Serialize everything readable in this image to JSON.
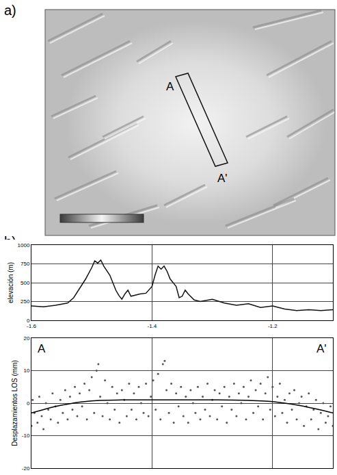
{
  "letters": [
    "a)",
    "b)"
  ],
  "map": {
    "labels": [
      "A",
      "A'"
    ]
  },
  "chart_data": [
    {
      "type": "line",
      "y_label": "elevación (m)",
      "color": "#111111",
      "grid": true,
      "xlim": [
        -1.6,
        -1.1
      ],
      "xticks": [
        -1.6,
        -1.4,
        -1.2
      ],
      "ylim": [
        0,
        1000
      ],
      "yticks": [
        0,
        250,
        500,
        750,
        1000
      ],
      "x": [
        -1.6,
        -1.58,
        -1.56,
        -1.54,
        -1.53,
        -1.52,
        -1.51,
        -1.5,
        -1.495,
        -1.49,
        -1.485,
        -1.48,
        -1.47,
        -1.46,
        -1.455,
        -1.45,
        -1.445,
        -1.44,
        -1.435,
        -1.43,
        -1.42,
        -1.41,
        -1.4,
        -1.395,
        -1.39,
        -1.385,
        -1.38,
        -1.375,
        -1.37,
        -1.36,
        -1.355,
        -1.35,
        -1.345,
        -1.34,
        -1.33,
        -1.32,
        -1.3,
        -1.28,
        -1.26,
        -1.24,
        -1.22,
        -1.2,
        -1.18,
        -1.16,
        -1.14,
        -1.12,
        -1.1
      ],
      "values": [
        190,
        180,
        200,
        230,
        300,
        420,
        550,
        700,
        790,
        760,
        800,
        720,
        600,
        400,
        330,
        280,
        350,
        400,
        320,
        330,
        350,
        360,
        450,
        600,
        720,
        680,
        720,
        650,
        550,
        450,
        300,
        320,
        400,
        350,
        270,
        250,
        280,
        230,
        200,
        220,
        170,
        190,
        150,
        130,
        140,
        130,
        140
      ]
    },
    {
      "type": "scatter",
      "y_label": "Desplazamientos LOS (mm)",
      "annotations": [
        "A",
        "A'"
      ],
      "grid": true,
      "tick_labels": "y",
      "xlim": [
        -1.6,
        -1.1
      ],
      "xticks": [
        -1.6,
        -1.4,
        -1.2
      ],
      "ylim": [
        -20,
        20
      ],
      "yticks": [
        -20,
        -10,
        0,
        10,
        20
      ],
      "series": [
        {
          "type": "scatter",
          "marker": "circle",
          "color": "#555555",
          "x": [
            -1.6,
            -1.598,
            -1.595,
            -1.59,
            -1.587,
            -1.583,
            -1.58,
            -1.576,
            -1.572,
            -1.568,
            -1.565,
            -1.56,
            -1.556,
            -1.552,
            -1.548,
            -1.544,
            -1.54,
            -1.536,
            -1.532,
            -1.528,
            -1.524,
            -1.52,
            -1.516,
            -1.512,
            -1.508,
            -1.504,
            -1.5,
            -1.496,
            -1.492,
            -1.489,
            -1.486,
            -1.482,
            -1.478,
            -1.474,
            -1.47,
            -1.466,
            -1.462,
            -1.458,
            -1.454,
            -1.45,
            -1.446,
            -1.442,
            -1.438,
            -1.434,
            -1.43,
            -1.426,
            -1.422,
            -1.418,
            -1.414,
            -1.41,
            -1.406,
            -1.402,
            -1.398,
            -1.394,
            -1.39,
            -1.386,
            -1.382,
            -1.379,
            -1.376,
            -1.372,
            -1.368,
            -1.364,
            -1.36,
            -1.356,
            -1.352,
            -1.348,
            -1.344,
            -1.34,
            -1.336,
            -1.332,
            -1.328,
            -1.324,
            -1.32,
            -1.316,
            -1.312,
            -1.308,
            -1.304,
            -1.3,
            -1.296,
            -1.292,
            -1.288,
            -1.284,
            -1.28,
            -1.276,
            -1.272,
            -1.268,
            -1.264,
            -1.26,
            -1.256,
            -1.252,
            -1.248,
            -1.244,
            -1.24,
            -1.236,
            -1.232,
            -1.228,
            -1.224,
            -1.22,
            -1.216,
            -1.212,
            -1.208,
            -1.204,
            -1.2,
            -1.196,
            -1.192,
            -1.188,
            -1.184,
            -1.18,
            -1.176,
            -1.172,
            -1.168,
            -1.164,
            -1.16,
            -1.156,
            -1.152,
            -1.148,
            -1.144,
            -1.14,
            -1.136,
            -1.132,
            -1.128,
            -1.124,
            -1.12,
            -1.116,
            -1.112,
            -1.108,
            -1.104,
            -1.1
          ],
          "values": [
            -7,
            1,
            -3,
            -6,
            2,
            -4,
            -8,
            0,
            -2,
            -5,
            3,
            -1,
            -6,
            1,
            -3,
            4,
            -5,
            2,
            -2,
            5,
            -4,
            3,
            -1,
            6,
            -5,
            4,
            8,
            -3,
            10,
            12,
            2,
            -4,
            7,
            0,
            -5,
            5,
            -2,
            3,
            -6,
            4,
            1,
            -4,
            6,
            -2,
            3,
            -5,
            5,
            0,
            -3,
            6,
            -4,
            2,
            7,
            -2,
            9,
            -5,
            12,
            13,
            4,
            -3,
            6,
            -6,
            3,
            -1,
            5,
            -4,
            2,
            -6,
            4,
            0,
            -3,
            5,
            -5,
            2,
            -2,
            6,
            -4,
            1,
            4,
            -5,
            3,
            -1,
            5,
            -6,
            2,
            -2,
            6,
            -4,
            3,
            0,
            5,
            -5,
            2,
            7,
            -3,
            4,
            -1,
            6,
            -5,
            3,
            8,
            -2,
            5,
            -4,
            2,
            6,
            -3,
            1,
            -6,
            3,
            -2,
            4,
            -5,
            0,
            2,
            -7,
            -1,
            3,
            -5,
            -2,
            1,
            -8,
            -3,
            0,
            -6,
            -4,
            -1,
            -7
          ]
        },
        {
          "type": "line",
          "color": "#000000",
          "x": [
            -1.6,
            -1.58,
            -1.56,
            -1.54,
            -1.52,
            -1.5,
            -1.45,
            -1.4,
            -1.35,
            -1.3,
            -1.25,
            -1.2,
            -1.18,
            -1.16,
            -1.14,
            -1.12,
            -1.1
          ],
          "values": [
            -3,
            -2,
            -1,
            -0.3,
            0.3,
            0.7,
            1,
            1,
            1,
            1,
            0.9,
            0.5,
            0,
            -0.6,
            -1.3,
            -2.1,
            -3
          ]
        }
      ]
    }
  ]
}
